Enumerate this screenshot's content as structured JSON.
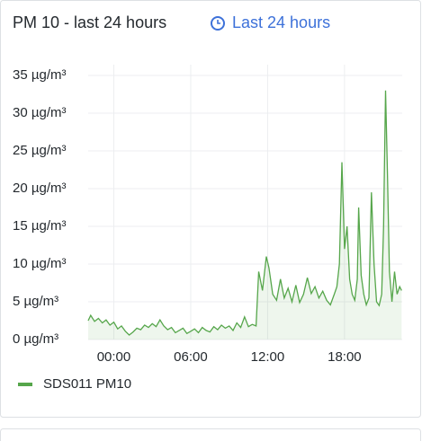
{
  "chart_data": {
    "type": "line",
    "title": "PM 10 - last 24 hours",
    "time_range": "Last 24 hours",
    "x": [
      -2,
      -1.8,
      -1.5,
      -1.2,
      -0.9,
      -0.6,
      -0.3,
      0,
      0.3,
      0.6,
      0.9,
      1.2,
      1.5,
      1.8,
      2.1,
      2.4,
      2.7,
      3,
      3.3,
      3.6,
      3.9,
      4.2,
      4.5,
      4.8,
      5.1,
      5.4,
      5.7,
      6,
      6.3,
      6.6,
      6.9,
      7.2,
      7.5,
      7.8,
      8.1,
      8.4,
      8.7,
      9,
      9.3,
      9.6,
      9.9,
      10.2,
      10.5,
      10.8,
      11.1,
      11.3,
      11.6,
      11.9,
      12.1,
      12.4,
      12.7,
      13,
      13.3,
      13.6,
      13.9,
      14.2,
      14.5,
      14.8,
      15.1,
      15.4,
      15.7,
      16,
      16.3,
      16.6,
      16.9,
      17.2,
      17.4,
      17.6,
      17.8,
      18,
      18.2,
      18.4,
      18.6,
      18.8,
      19,
      19.1,
      19.3,
      19.5,
      19.7,
      19.9,
      20.1,
      20.3,
      20.5,
      20.7,
      20.9,
      21.05,
      21.2,
      21.35,
      21.5,
      21.7,
      21.9,
      22.1,
      22.3,
      22.45
    ],
    "series": [
      {
        "name": "SDS011 PM10",
        "color": "#56a64b",
        "values": [
          2.5,
          3.2,
          2.4,
          2.8,
          2.2,
          2.6,
          1.9,
          2.3,
          1.4,
          1.8,
          1.1,
          0.6,
          1.0,
          1.5,
          1.3,
          1.9,
          1.6,
          2.1,
          1.7,
          2.6,
          1.8,
          1.3,
          1.6,
          0.9,
          1.2,
          1.5,
          0.8,
          1.1,
          1.4,
          0.9,
          1.6,
          1.2,
          1.0,
          1.7,
          1.3,
          1.9,
          1.5,
          1.8,
          1.2,
          2.2,
          1.6,
          3.0,
          1.7,
          2.0,
          1.8,
          9.0,
          6.5,
          11.0,
          9.5,
          6.0,
          5.2,
          8.0,
          5.5,
          6.8,
          5.0,
          7.2,
          4.9,
          6.0,
          8.2,
          6.1,
          7.0,
          5.5,
          6.4,
          5.2,
          4.6,
          6.0,
          7.0,
          10.0,
          23.5,
          12.0,
          15.0,
          8.0,
          6.0,
          5.2,
          8.0,
          17.5,
          8.5,
          6.0,
          4.6,
          5.5,
          19.5,
          10.0,
          5.0,
          4.5,
          6.0,
          15.0,
          33.0,
          22.0,
          9.0,
          5.0,
          9.0,
          6.0,
          7.0,
          6.5
        ]
      }
    ],
    "xlim": [
      -2,
      22.5
    ],
    "xticks": [
      {
        "value": 0,
        "label": "00:00"
      },
      {
        "value": 6,
        "label": "06:00"
      },
      {
        "value": 12,
        "label": "12:00"
      },
      {
        "value": 18,
        "label": "18:00"
      }
    ],
    "ylim": [
      0,
      35
    ],
    "yticks": [
      {
        "value": 0,
        "label": "0 µg/m³"
      },
      {
        "value": 5,
        "label": "5 µg/m³"
      },
      {
        "value": 10,
        "label": "10 µg/m³"
      },
      {
        "value": 15,
        "label": "15 µg/m³"
      },
      {
        "value": 20,
        "label": "20 µg/m³"
      },
      {
        "value": 25,
        "label": "25 µg/m³"
      },
      {
        "value": 30,
        "label": "30 µg/m³"
      },
      {
        "value": 35,
        "label": "35 µg/m³"
      }
    ],
    "grid": true
  }
}
